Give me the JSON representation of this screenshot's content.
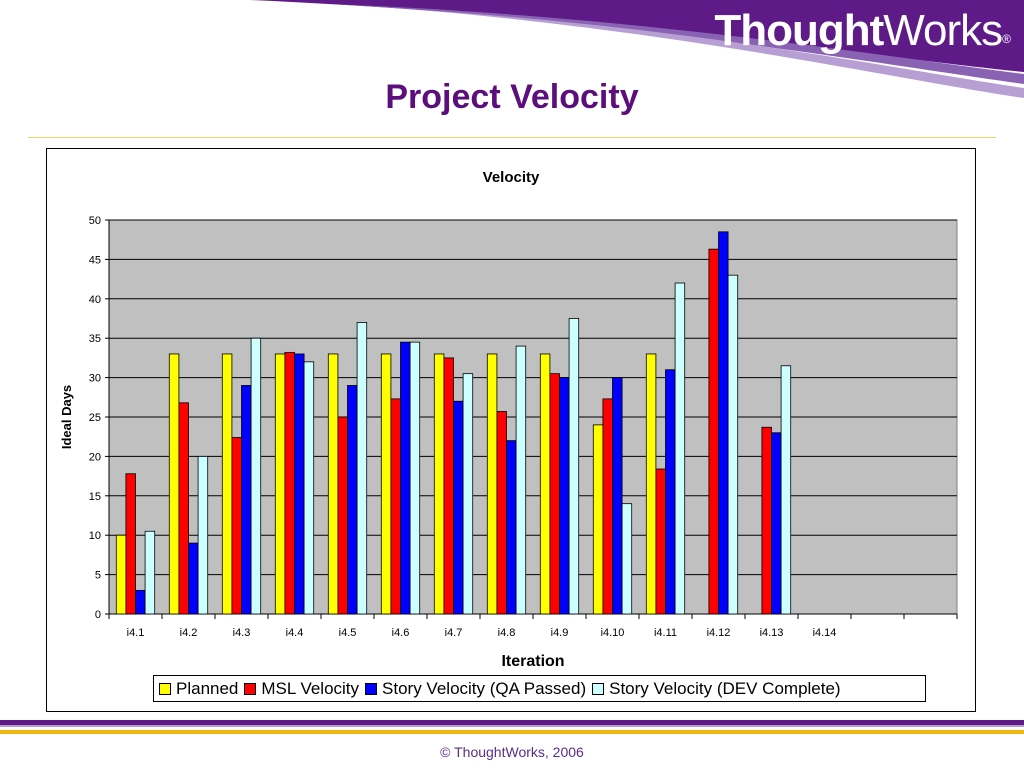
{
  "header": {
    "logo_bold": "Thought",
    "logo_light": "Works",
    "logo_reg": "®",
    "title": "Project Velocity"
  },
  "footer": {
    "copyright": "© ThoughtWorks, 2006"
  },
  "colors": {
    "brand_purple": "#5c0f7c",
    "planned": "#ffff00",
    "msl": "#ff0000",
    "qa": "#0000ff",
    "dev": "#ccffff",
    "plot_bg": "#c0c0c0"
  },
  "chart_data": {
    "type": "bar",
    "title": "Velocity",
    "xlabel": "Iteration",
    "ylabel": "Ideal Days",
    "ylim": [
      0,
      50
    ],
    "yticks": [
      0,
      5,
      10,
      15,
      20,
      25,
      30,
      35,
      40,
      45,
      50
    ],
    "grid": true,
    "legend_position": "bottom",
    "categories": [
      "i4.1",
      "i4.2",
      "i4.3",
      "i4.4",
      "i4.5",
      "i4.6",
      "i4.7",
      "i4.8",
      "i4.9",
      "i4.10",
      "i4.11",
      "i4.12",
      "i4.13",
      "i4.14",
      "",
      ""
    ],
    "series": [
      {
        "name": "Planned",
        "color": "#ffff00",
        "values": [
          10,
          33,
          33,
          33,
          33,
          33,
          33,
          33,
          33,
          24,
          33,
          null,
          null,
          null,
          null,
          null
        ]
      },
      {
        "name": "MSL Velocity",
        "color": "#ff0000",
        "values": [
          17.8,
          26.8,
          22.4,
          33.2,
          25,
          27.3,
          32.5,
          25.7,
          30.5,
          27.3,
          18.4,
          46.3,
          23.7,
          null,
          null,
          null
        ]
      },
      {
        "name": "Story Velocity (QA Passed)",
        "color": "#0000ff",
        "values": [
          3,
          9,
          29,
          33,
          29,
          34.5,
          27,
          22,
          30,
          30,
          31,
          48.5,
          23,
          null,
          null,
          null
        ]
      },
      {
        "name": "Story Velocity (DEV Complete)",
        "color": "#ccffff",
        "values": [
          10.5,
          20,
          35,
          32,
          37,
          34.5,
          30.5,
          34,
          37.5,
          14,
          42,
          43,
          31.5,
          null,
          null,
          null
        ]
      }
    ]
  }
}
